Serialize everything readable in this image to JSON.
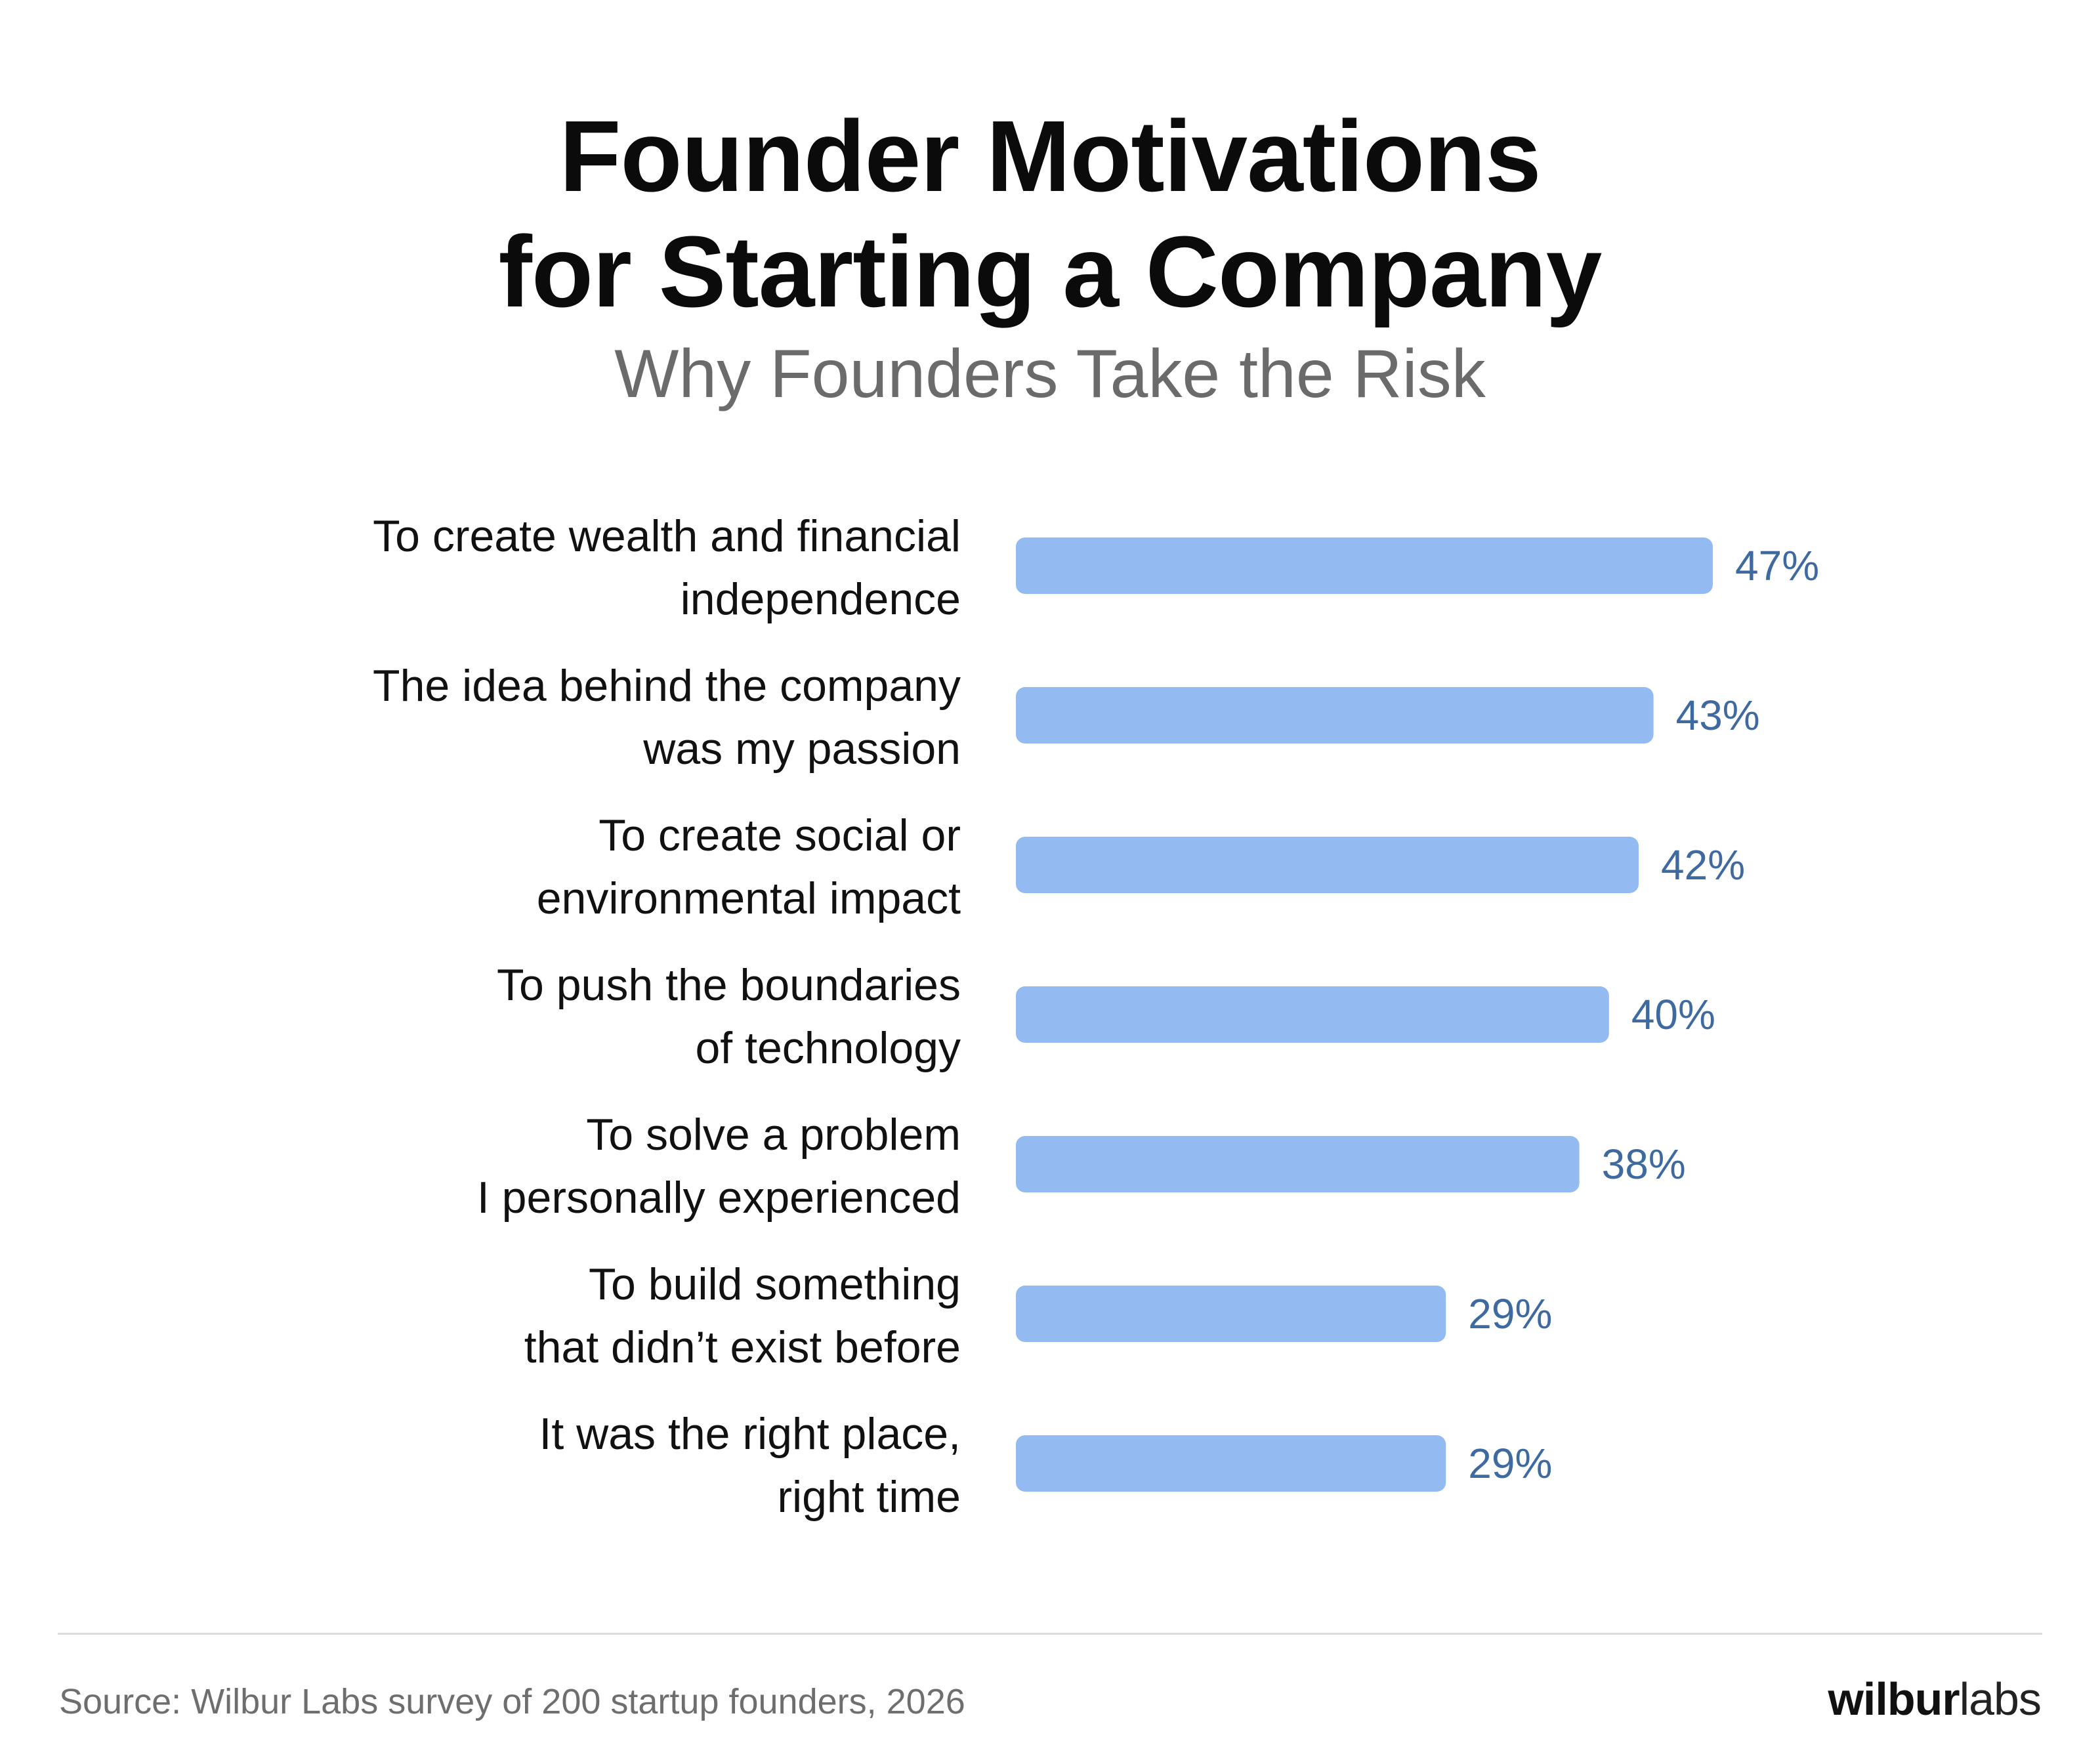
{
  "title_lines": [
    "Founder Motivations",
    "for Starting a Company"
  ],
  "subtitle": "Why Founders Take the Risk",
  "source": "Source: Wilbur Labs survey of 200 startup founders, 2026",
  "logo": {
    "bold": "wilbur",
    "light": "labs"
  },
  "colors": {
    "bar": "#93bbf2",
    "value_label": "#3f6a9f",
    "text": "#111111",
    "subtitle": "#6b6b6b"
  },
  "chart_data": {
    "type": "bar",
    "orientation": "horizontal",
    "categories": [
      [
        "To create wealth and financial",
        "independence"
      ],
      [
        "The idea behind the company",
        "was my passion"
      ],
      [
        "To create social or",
        "environmental impact"
      ],
      [
        "To push the boundaries",
        "of technology"
      ],
      [
        "To solve a problem",
        "I personally experienced"
      ],
      [
        "To build something",
        "that didn’t exist before"
      ],
      [
        "It was the right place,",
        "right time"
      ]
    ],
    "values": [
      47,
      43,
      42,
      40,
      38,
      29,
      29
    ],
    "value_labels": [
      "47%",
      "43%",
      "42%",
      "40%",
      "38%",
      "29%",
      "29%"
    ],
    "unit": "%",
    "xlim": [
      0,
      47
    ],
    "grid": false,
    "legend": false
  }
}
